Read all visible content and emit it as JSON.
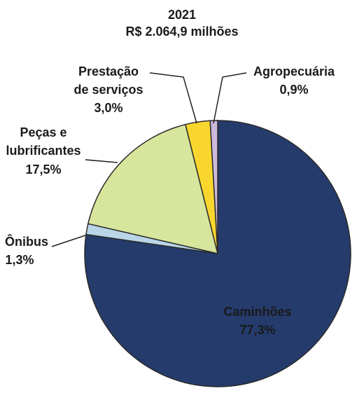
{
  "chart_data": {
    "type": "pie",
    "title": "2021",
    "subtitle": "R$ 2.064,9 milhões",
    "categories": [
      [
        "Caminhões"
      ],
      [
        "Ônibus"
      ],
      [
        "Peças e",
        "lubrificantes"
      ],
      [
        "Prestação",
        "de serviços"
      ],
      [
        "Agropecuária"
      ]
    ],
    "values": [
      77.3,
      1.3,
      17.5,
      3.0,
      0.9
    ],
    "value_labels": [
      "77,3%",
      "1,3%",
      "17,5%",
      "3,0%",
      "0,9%"
    ],
    "colors": [
      "#243b6c",
      "#b9d5e8",
      "#d7e69c",
      "#f8d62e",
      "#cdb9dc"
    ]
  }
}
